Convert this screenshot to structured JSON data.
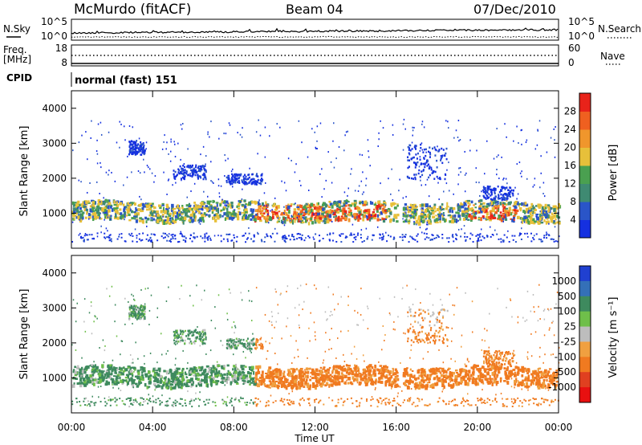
{
  "header": {
    "station": "McMurdo (fitACF)",
    "beam": "Beam 04",
    "date": "07/Dec/2010"
  },
  "top_panel": {
    "left_label": "N.Sky",
    "right_label": "N.Search",
    "left_ticks": [
      "10^5",
      "10^0"
    ],
    "right_ticks": [
      "10^5",
      "10^0"
    ]
  },
  "freq_panel": {
    "left_label_1": "Freq.",
    "left_label_2": "[MHz]",
    "right_label": "Nave",
    "left_ticks": [
      "18",
      "8"
    ],
    "right_ticks": [
      "60",
      "0"
    ]
  },
  "cpid": {
    "label": "CPID",
    "value": "normal (fast) 151"
  },
  "colors": {
    "power_scale": [
      "#1530e0",
      "#2a55c8",
      "#3f8a72",
      "#4aa050",
      "#e7c03a",
      "#f0962c",
      "#ef6020",
      "#e8231a"
    ],
    "velocity_scale": [
      "#2040d0",
      "#3470b8",
      "#3e8a5e",
      "#6fbf4a",
      "#bdbdbd",
      "#f0a040",
      "#f07a20",
      "#e04020",
      "#e81010"
    ]
  },
  "chart_data": [
    {
      "type": "heatmap",
      "title": "",
      "xlabel": "Time UT",
      "ylabel": "Slant Range [km]",
      "x_ticks": [
        "00:00",
        "04:00",
        "08:00",
        "12:00",
        "16:00",
        "20:00",
        "00:00"
      ],
      "y_ticks": [
        "1000",
        "2000",
        "3000",
        "4000"
      ],
      "ylim": [
        0,
        4500
      ],
      "colorbar": {
        "label": "Power [dB]",
        "ticks": [
          "4",
          "8",
          "12",
          "16",
          "20",
          "24",
          "28"
        ],
        "range": [
          0,
          32
        ]
      }
    },
    {
      "type": "heatmap",
      "title": "",
      "xlabel": "Time UT",
      "ylabel": "Slant Range [km]",
      "x_ticks": [
        "00:00",
        "04:00",
        "08:00",
        "12:00",
        "16:00",
        "20:00",
        "00:00"
      ],
      "y_ticks": [
        "1000",
        "2000",
        "3000",
        "4000"
      ],
      "ylim": [
        0,
        4500
      ],
      "colorbar": {
        "label": "Velocity [m s⁻¹]",
        "ticks": [
          "1000",
          "500",
          "100",
          "25",
          "-25",
          "-100",
          "-500",
          "-1000"
        ]
      }
    }
  ]
}
